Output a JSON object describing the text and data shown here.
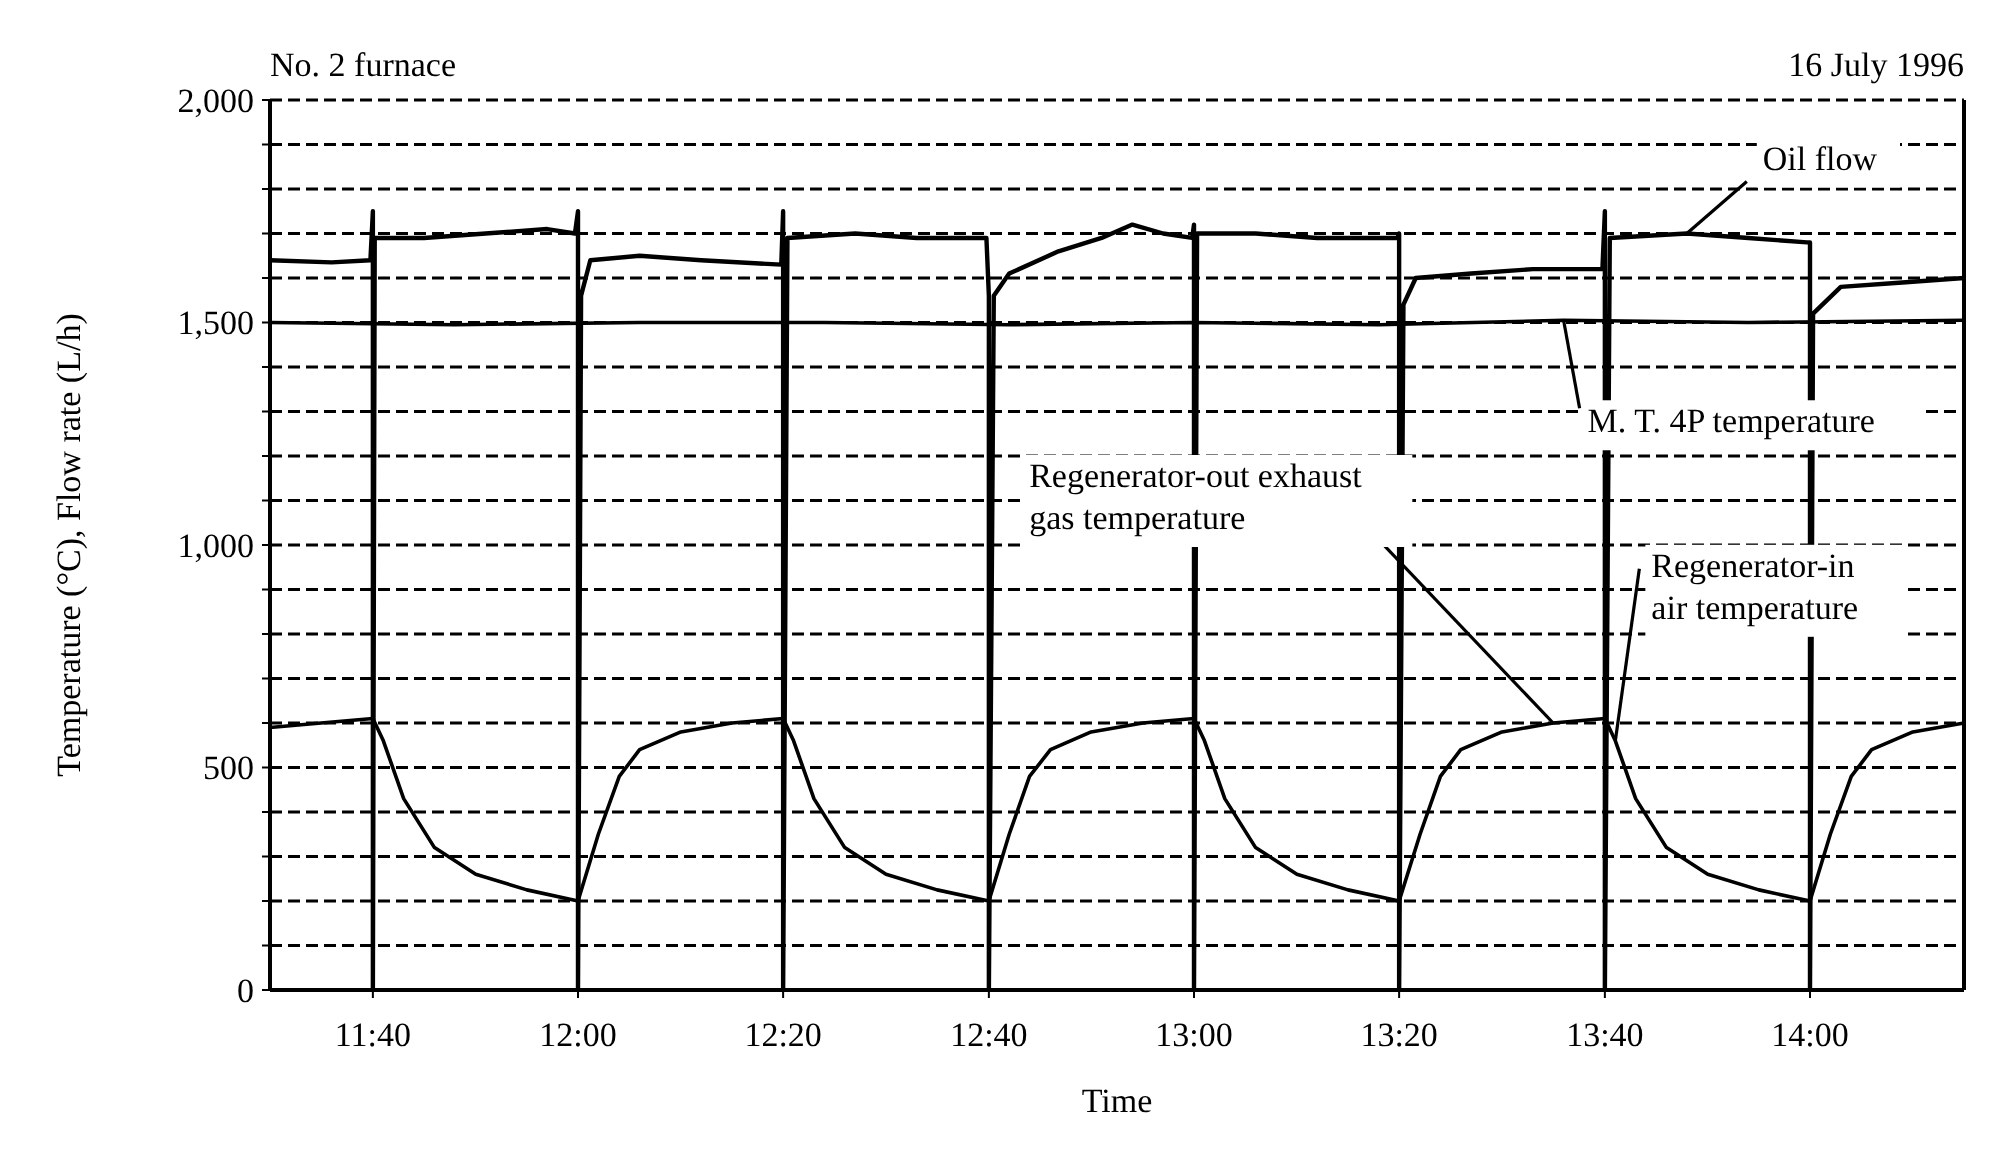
{
  "chart_data": {
    "type": "line",
    "title": "No. 2 furnace",
    "subtitle": "16 July 1996",
    "xlabel": "Time",
    "ylabel": "Temperature (°C), Flow rate (L/h)",
    "xlim": [
      11.5,
      14.25
    ],
    "xticks": [
      {
        "value": 11.667,
        "label": "11:40"
      },
      {
        "value": 12,
        "label": "12:00"
      },
      {
        "value": 12.333,
        "label": "12:20"
      },
      {
        "value": 12.667,
        "label": "12:40"
      },
      {
        "value": 13,
        "label": "13:00"
      },
      {
        "value": 13.333,
        "label": "13:20"
      },
      {
        "value": 13.667,
        "label": "13:40"
      },
      {
        "value": 14,
        "label": "14:00"
      }
    ],
    "ylim": [
      0,
      2000
    ],
    "yticks": [
      {
        "value": 0,
        "label": "0"
      },
      {
        "value": 100,
        "label": null
      },
      {
        "value": 200,
        "label": null
      },
      {
        "value": 300,
        "label": null
      },
      {
        "value": 400,
        "label": null
      },
      {
        "value": 500,
        "label": "500"
      },
      {
        "value": 600,
        "label": null
      },
      {
        "value": 700,
        "label": null
      },
      {
        "value": 800,
        "label": null
      },
      {
        "value": 900,
        "label": null
      },
      {
        "value": 1000,
        "label": "1,000"
      },
      {
        "value": 1100,
        "label": null
      },
      {
        "value": 1200,
        "label": null
      },
      {
        "value": 1300,
        "label": null
      },
      {
        "value": 1400,
        "label": null
      },
      {
        "value": 1500,
        "label": "1,500"
      },
      {
        "value": 1600,
        "label": null
      },
      {
        "value": 1700,
        "label": null
      },
      {
        "value": 1800,
        "label": null
      },
      {
        "value": 1900,
        "label": null
      },
      {
        "value": 2000,
        "label": "2,000"
      }
    ],
    "grid": "y",
    "marker": "none",
    "line_style": "solid",
    "series": [
      {
        "name": "Oil flow",
        "color": "#000000",
        "x": [
          11.5,
          11.6,
          11.663,
          11.667,
          11.667,
          11.67,
          11.75,
          11.85,
          11.95,
          11.995,
          12,
          12,
          12.005,
          12.02,
          12.1,
          12.2,
          12.33,
          12.333,
          12.333,
          12.34,
          12.45,
          12.55,
          12.663,
          12.667,
          12.667,
          12.675,
          12.7,
          12.78,
          12.85,
          12.9,
          12.95,
          12.997,
          13,
          13,
          13.005,
          13.1,
          13.2,
          13.33,
          13.333,
          13.333,
          13.34,
          13.36,
          13.45,
          13.55,
          13.663,
          13.667,
          13.667,
          13.675,
          13.8,
          13.9,
          13.995,
          14,
          14,
          14.005,
          14.05,
          14.15,
          14.25
        ],
        "values": [
          1640,
          1635,
          1640,
          1750,
          0,
          1690,
          1690,
          1700,
          1710,
          1700,
          1750,
          0,
          1560,
          1640,
          1650,
          1640,
          1630,
          1750,
          0,
          1690,
          1700,
          1690,
          1690,
          1560,
          0,
          1560,
          1610,
          1660,
          1690,
          1720,
          1700,
          1690,
          1720,
          0,
          1700,
          1700,
          1690,
          1690,
          1700,
          0,
          1540,
          1600,
          1610,
          1620,
          1620,
          1750,
          0,
          1690,
          1700,
          1690,
          1680,
          1680,
          0,
          1520,
          1580,
          1590,
          1600
        ]
      },
      {
        "name": "M. T. 4P temperature",
        "color": "#000000",
        "x": [
          11.5,
          11.8,
          12.1,
          12.4,
          12.7,
          13,
          13.3,
          13.6,
          13.9,
          14.25
        ],
        "values": [
          1500,
          1495,
          1500,
          1500,
          1495,
          1500,
          1495,
          1505,
          1500,
          1505
        ]
      },
      {
        "name": "Regenerator-out exhaust gas temperature",
        "color": "#000000",
        "x": [
          11.5,
          11.583,
          11.667,
          11.8,
          12,
          12.033,
          12.067,
          12.1,
          12.167,
          12.25,
          12.333,
          12.5,
          12.667,
          12.7,
          12.733,
          12.767,
          12.833,
          12.917,
          13,
          13.15,
          13.333,
          13.367,
          13.4,
          13.433,
          13.5,
          13.583,
          13.667,
          13.8,
          14,
          14.033,
          14.067,
          14.1,
          14.167,
          14.25
        ],
        "values": [
          590,
          600,
          610,
          null,
          200,
          350,
          480,
          540,
          580,
          600,
          610,
          null,
          200,
          350,
          480,
          540,
          580,
          600,
          610,
          null,
          200,
          350,
          480,
          540,
          580,
          600,
          610,
          null,
          200,
          350,
          480,
          540,
          580,
          600
        ]
      },
      {
        "name": "Regenerator-in air temperature",
        "color": "#000000",
        "x": [
          11.667,
          11.684,
          11.717,
          11.767,
          11.834,
          11.917,
          12,
          12.15,
          12.333,
          12.35,
          12.383,
          12.433,
          12.5,
          12.583,
          12.667,
          12.8,
          13,
          13.017,
          13.05,
          13.1,
          13.167,
          13.25,
          13.333,
          13.5,
          13.667,
          13.684,
          13.717,
          13.767,
          13.834,
          13.917,
          14
        ],
        "values": [
          610,
          560,
          430,
          320,
          260,
          225,
          200,
          null,
          610,
          560,
          430,
          320,
          260,
          225,
          200,
          null,
          610,
          560,
          430,
          320,
          260,
          225,
          200,
          null,
          610,
          560,
          430,
          320,
          260,
          225,
          200
        ]
      }
    ]
  }
}
